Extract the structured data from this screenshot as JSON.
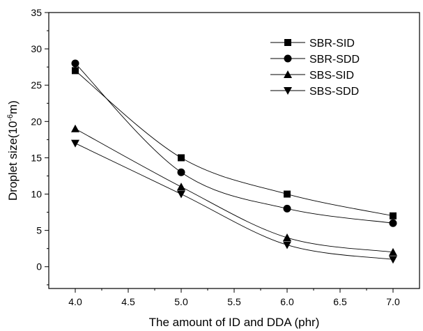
{
  "chart_data": {
    "type": "line",
    "title": "",
    "xlabel": "The amount of ID and DDA (phr)",
    "ylabel_main": "Droplet size(10",
    "ylabel_sup": "-6",
    "ylabel_tail": "m)",
    "xlim": [
      3.75,
      7.25
    ],
    "ylim": [
      -3,
      35
    ],
    "x_ticks": [
      "4.0",
      "4.5",
      "5.0",
      "5.5",
      "6.0",
      "6.5",
      "7.0"
    ],
    "y_ticks": [
      "0",
      "5",
      "10",
      "15",
      "20",
      "25",
      "30",
      "35"
    ],
    "grid": false,
    "legend_position": "top-right",
    "x": [
      4.0,
      5.0,
      6.0,
      7.0
    ],
    "series": [
      {
        "name": "SBR-SID",
        "marker": "square",
        "values": [
          27,
          15,
          10,
          7
        ]
      },
      {
        "name": "SBR-SDD",
        "marker": "circle",
        "values": [
          28,
          13,
          8,
          6
        ]
      },
      {
        "name": "SBS-SID",
        "marker": "triangle-up",
        "values": [
          19,
          11,
          4,
          2
        ]
      },
      {
        "name": "SBS-SDD",
        "marker": "triangle-down",
        "values": [
          17,
          10,
          3,
          1
        ]
      }
    ]
  }
}
